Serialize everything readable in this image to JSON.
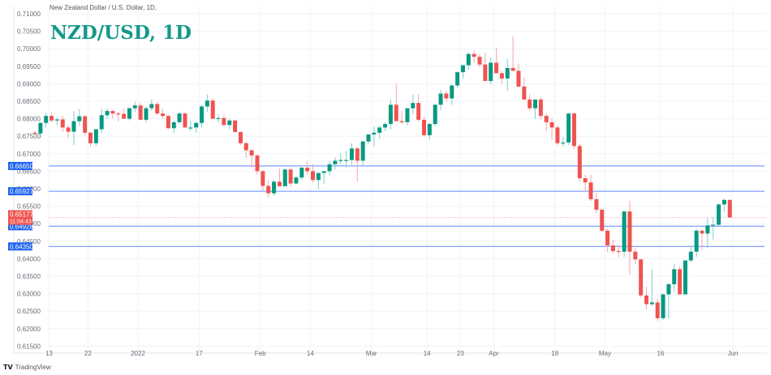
{
  "header": {
    "symbol_description": "New Zealand Dollar / U.S. Dollar, 1D,",
    "overlay_title": "NZD/USD, 1D"
  },
  "footer": {
    "brand": "TradingView",
    "logo_icon": "tradingview-logo-icon"
  },
  "colors": {
    "up": "#26a69a",
    "up_body": "#089981",
    "down": "#f23645",
    "down_body": "#f05350",
    "hline": "#2962ff",
    "label_bg": "#1e63f0",
    "price_label_bg": "#f05350",
    "title": "#12998a",
    "grid": "#f0f3fa"
  },
  "price_labels": {
    "current_price": "0.65177",
    "countdown": "11:04:43",
    "levels": [
      "0.66650",
      "0.65927",
      "0.64928",
      "0.64350"
    ]
  },
  "chart_data": {
    "type": "candlestick",
    "title": "NZD/USD, 1D",
    "subtitle": "New Zealand Dollar / U.S. Dollar, 1D",
    "xlabel": "",
    "ylabel": "Price",
    "ylim": [
      0.6135,
      0.7115
    ],
    "y_ticks": [
      "0.71000",
      "0.70500",
      "0.70000",
      "0.69500",
      "0.69000",
      "0.68500",
      "0.68000",
      "0.67500",
      "0.67000",
      "0.66500",
      "0.66000",
      "0.65500",
      "0.65000",
      "0.64500",
      "0.64000",
      "0.63500",
      "0.63000",
      "0.62500",
      "0.62000",
      "0.61500"
    ],
    "x_ticks": [
      {
        "label": "13",
        "i": 4
      },
      {
        "label": "22",
        "i": 11
      },
      {
        "label": "2022",
        "i": 20
      },
      {
        "label": "17",
        "i": 31
      },
      {
        "label": "Feb",
        "i": 42
      },
      {
        "label": "14",
        "i": 51
      },
      {
        "label": "Mar",
        "i": 62
      },
      {
        "label": "14",
        "i": 72
      },
      {
        "label": "23",
        "i": 78
      },
      {
        "label": "Apr",
        "i": 84
      },
      {
        "label": "18",
        "i": 95
      },
      {
        "label": "May",
        "i": 104
      },
      {
        "label": "16",
        "i": 114
      },
      {
        "label": "Jun",
        "i": 127
      }
    ],
    "horizontal_levels": [
      0.6665,
      0.65927,
      0.64928,
      0.6435
    ],
    "current_price": 0.65177,
    "grid": true,
    "ohlc": [
      [
        0.676,
        0.6765,
        0.6755,
        0.6757
      ],
      [
        0.6758,
        0.679,
        0.6745,
        0.6788
      ],
      [
        0.6788,
        0.6817,
        0.6775,
        0.6808
      ],
      [
        0.6808,
        0.6818,
        0.679,
        0.6795
      ],
      [
        0.6795,
        0.6803,
        0.6782,
        0.6798
      ],
      [
        0.6798,
        0.6808,
        0.6762,
        0.6775
      ],
      [
        0.6775,
        0.6782,
        0.6745,
        0.6763
      ],
      [
        0.6763,
        0.6822,
        0.6725,
        0.6793
      ],
      [
        0.6793,
        0.6828,
        0.678,
        0.6807
      ],
      [
        0.6807,
        0.681,
        0.6752,
        0.676
      ],
      [
        0.676,
        0.6762,
        0.672,
        0.673
      ],
      [
        0.673,
        0.677,
        0.6722,
        0.677
      ],
      [
        0.677,
        0.6828,
        0.6758,
        0.681
      ],
      [
        0.681,
        0.683,
        0.6798,
        0.6822
      ],
      [
        0.6822,
        0.6826,
        0.68,
        0.6815
      ],
      [
        0.6815,
        0.682,
        0.6792,
        0.6814
      ],
      [
        0.6814,
        0.6828,
        0.68,
        0.68
      ],
      [
        0.68,
        0.6832,
        0.6795,
        0.683
      ],
      [
        0.683,
        0.6848,
        0.682,
        0.6838
      ],
      [
        0.6838,
        0.6845,
        0.6795,
        0.6797
      ],
      [
        0.6797,
        0.6835,
        0.679,
        0.683
      ],
      [
        0.683,
        0.6855,
        0.6822,
        0.6842
      ],
      [
        0.6842,
        0.6848,
        0.6812,
        0.6815
      ],
      [
        0.6815,
        0.6828,
        0.68,
        0.6808
      ],
      [
        0.6808,
        0.6812,
        0.677,
        0.6773
      ],
      [
        0.6773,
        0.6795,
        0.6758,
        0.679
      ],
      [
        0.679,
        0.682,
        0.6785,
        0.6815
      ],
      [
        0.6815,
        0.6818,
        0.6775,
        0.6775
      ],
      [
        0.6775,
        0.6795,
        0.6765,
        0.6775
      ],
      [
        0.6775,
        0.679,
        0.676,
        0.6788
      ],
      [
        0.6788,
        0.684,
        0.6775,
        0.6835
      ],
      [
        0.6835,
        0.687,
        0.682,
        0.6852
      ],
      [
        0.6852,
        0.6858,
        0.68,
        0.68
      ],
      [
        0.68,
        0.6812,
        0.679,
        0.6802
      ],
      [
        0.6802,
        0.6812,
        0.6778,
        0.6782
      ],
      [
        0.6782,
        0.68,
        0.677,
        0.6795
      ],
      [
        0.6795,
        0.6797,
        0.676,
        0.6762
      ],
      [
        0.6762,
        0.6764,
        0.6725,
        0.673
      ],
      [
        0.673,
        0.6735,
        0.6688,
        0.671
      ],
      [
        0.671,
        0.6712,
        0.666,
        0.6695
      ],
      [
        0.6695,
        0.6698,
        0.664,
        0.665
      ],
      [
        0.665,
        0.6655,
        0.6595,
        0.6608
      ],
      [
        0.6608,
        0.6625,
        0.6575,
        0.6587
      ],
      [
        0.6587,
        0.6625,
        0.658,
        0.662
      ],
      [
        0.662,
        0.6657,
        0.6617,
        0.6607
      ],
      [
        0.6607,
        0.6658,
        0.661,
        0.6655
      ],
      [
        0.6655,
        0.6658,
        0.6605,
        0.6615
      ],
      [
        0.6615,
        0.6638,
        0.6612,
        0.6632
      ],
      [
        0.6632,
        0.6662,
        0.6625,
        0.666
      ],
      [
        0.666,
        0.668,
        0.664,
        0.665
      ],
      [
        0.665,
        0.667,
        0.6618,
        0.6625
      ],
      [
        0.6625,
        0.664,
        0.66,
        0.6645
      ],
      [
        0.6645,
        0.665,
        0.6613,
        0.665
      ],
      [
        0.665,
        0.668,
        0.6638,
        0.667
      ],
      [
        0.667,
        0.669,
        0.6655,
        0.668
      ],
      [
        0.668,
        0.67,
        0.667,
        0.6682
      ],
      [
        0.6682,
        0.6708,
        0.666,
        0.6682
      ],
      [
        0.6682,
        0.673,
        0.6668,
        0.6715
      ],
      [
        0.6715,
        0.672,
        0.662,
        0.668
      ],
      [
        0.668,
        0.6738,
        0.6665,
        0.6735
      ],
      [
        0.6735,
        0.6752,
        0.6728,
        0.6755
      ],
      [
        0.6755,
        0.6778,
        0.672,
        0.676
      ],
      [
        0.676,
        0.678,
        0.6742,
        0.6775
      ],
      [
        0.6775,
        0.679,
        0.6765,
        0.6785
      ],
      [
        0.6785,
        0.6855,
        0.677,
        0.684
      ],
      [
        0.684,
        0.69,
        0.68,
        0.6793
      ],
      [
        0.6793,
        0.6822,
        0.6785,
        0.679
      ],
      [
        0.679,
        0.6828,
        0.678,
        0.683
      ],
      [
        0.683,
        0.687,
        0.6812,
        0.6845
      ],
      [
        0.6845,
        0.687,
        0.6792,
        0.6797
      ],
      [
        0.6797,
        0.6805,
        0.6748,
        0.6753
      ],
      [
        0.6753,
        0.6788,
        0.674,
        0.6785
      ],
      [
        0.6785,
        0.6842,
        0.6778,
        0.684
      ],
      [
        0.684,
        0.6883,
        0.6825,
        0.6872
      ],
      [
        0.6872,
        0.688,
        0.6848,
        0.6858
      ],
      [
        0.6858,
        0.69,
        0.684,
        0.6895
      ],
      [
        0.6895,
        0.6935,
        0.6888,
        0.6933
      ],
      [
        0.6933,
        0.695,
        0.6915,
        0.6953
      ],
      [
        0.6953,
        0.699,
        0.694,
        0.6985
      ],
      [
        0.6985,
        0.6995,
        0.696,
        0.6977
      ],
      [
        0.6977,
        0.6985,
        0.6948,
        0.6955
      ],
      [
        0.6955,
        0.6988,
        0.6915,
        0.6908
      ],
      [
        0.6908,
        0.6975,
        0.6898,
        0.696
      ],
      [
        0.696,
        0.7002,
        0.6947,
        0.693
      ],
      [
        0.693,
        0.6937,
        0.69,
        0.6915
      ],
      [
        0.6915,
        0.697,
        0.688,
        0.6945
      ],
      [
        0.6945,
        0.7035,
        0.6935,
        0.6937
      ],
      [
        0.6937,
        0.6958,
        0.689,
        0.6892
      ],
      [
        0.6892,
        0.6918,
        0.687,
        0.6855
      ],
      [
        0.6855,
        0.687,
        0.6822,
        0.683
      ],
      [
        0.683,
        0.685,
        0.68,
        0.6855
      ],
      [
        0.6855,
        0.6862,
        0.6798,
        0.6808
      ],
      [
        0.6808,
        0.6815,
        0.6765,
        0.679
      ],
      [
        0.679,
        0.6802,
        0.674,
        0.6775
      ],
      [
        0.6775,
        0.678,
        0.6725,
        0.673
      ],
      [
        0.673,
        0.6748,
        0.672,
        0.6732
      ],
      [
        0.6732,
        0.6815,
        0.6725,
        0.6815
      ],
      [
        0.6815,
        0.6818,
        0.6715,
        0.6722
      ],
      [
        0.6722,
        0.6728,
        0.6618,
        0.663
      ],
      [
        0.663,
        0.664,
        0.659,
        0.6618
      ],
      [
        0.6618,
        0.664,
        0.6565,
        0.657
      ],
      [
        0.657,
        0.6588,
        0.653,
        0.654
      ],
      [
        0.654,
        0.6545,
        0.6477,
        0.648
      ],
      [
        0.648,
        0.6485,
        0.642,
        0.6438
      ],
      [
        0.6438,
        0.6455,
        0.6415,
        0.6422
      ],
      [
        0.6422,
        0.644,
        0.6405,
        0.642
      ],
      [
        0.642,
        0.6535,
        0.6405,
        0.6535
      ],
      [
        0.6535,
        0.6565,
        0.6355,
        0.642
      ],
      [
        0.642,
        0.643,
        0.6385,
        0.6398
      ],
      [
        0.6398,
        0.64,
        0.629,
        0.6295
      ],
      [
        0.6295,
        0.632,
        0.6255,
        0.627
      ],
      [
        0.627,
        0.637,
        0.6265,
        0.6275
      ],
      [
        0.6275,
        0.6285,
        0.6222,
        0.623
      ],
      [
        0.623,
        0.63,
        0.6225,
        0.6298
      ],
      [
        0.6298,
        0.633,
        0.623,
        0.6327
      ],
      [
        0.6327,
        0.6385,
        0.6305,
        0.637
      ],
      [
        0.637,
        0.6378,
        0.6298,
        0.6298
      ],
      [
        0.6298,
        0.6395,
        0.6298,
        0.6395
      ],
      [
        0.6395,
        0.6435,
        0.639,
        0.642
      ],
      [
        0.642,
        0.6485,
        0.6405,
        0.648
      ],
      [
        0.648,
        0.6482,
        0.6425,
        0.6472
      ],
      [
        0.6472,
        0.6515,
        0.643,
        0.6495
      ],
      [
        0.6495,
        0.652,
        0.6455,
        0.6497
      ],
      [
        0.6497,
        0.6558,
        0.6492,
        0.6555
      ],
      [
        0.6555,
        0.6572,
        0.6535,
        0.6568
      ],
      [
        0.6568,
        0.657,
        0.6517,
        0.6518
      ]
    ]
  }
}
